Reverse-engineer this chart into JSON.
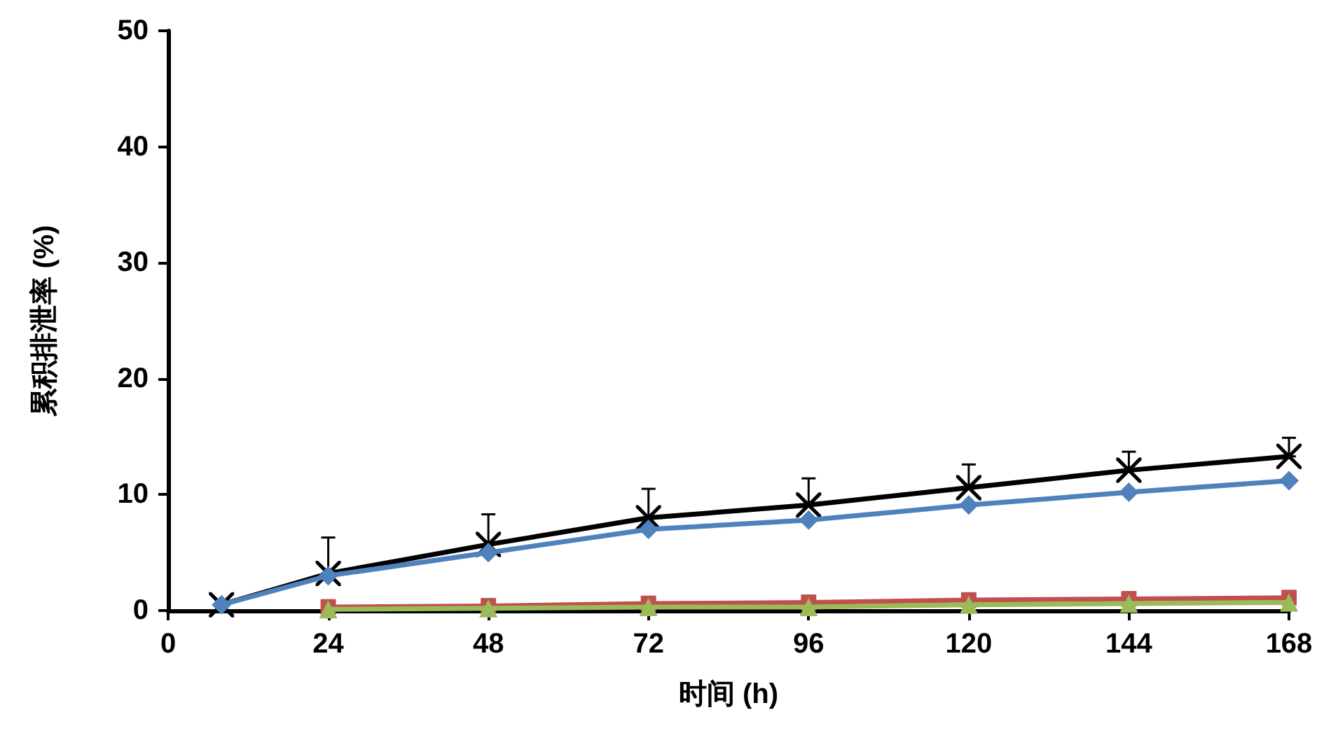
{
  "chart_data": {
    "type": "line",
    "xlabel": "时间 (h)",
    "ylabel": "累积排泄率 (%)",
    "xlim": [
      0,
      168
    ],
    "xticks": [
      0,
      24,
      48,
      72,
      96,
      120,
      144,
      168
    ],
    "ylim": [
      0,
      50
    ],
    "yticks": [
      0,
      10,
      20,
      30,
      40,
      50
    ],
    "grid": false,
    "series": [
      {
        "color": "#000000",
        "marker": "cross",
        "x": [
          8,
          24,
          48,
          72,
          96,
          120,
          144,
          168
        ],
        "values": [
          0.5,
          3.2,
          5.7,
          8.0,
          9.1,
          10.6,
          12.1,
          13.3
        ],
        "errors": [
          null,
          [
            3.2,
            6.3
          ],
          [
            5.7,
            8.3
          ],
          [
            8.0,
            10.5
          ],
          [
            9.1,
            11.4
          ],
          [
            10.6,
            12.6
          ],
          [
            12.1,
            13.7
          ],
          [
            13.3,
            14.9
          ]
        ]
      },
      {
        "color": "#4f81bd",
        "marker": "diamond",
        "x": [
          8,
          24,
          48,
          72,
          96,
          120,
          144,
          168
        ],
        "values": [
          0.5,
          3.0,
          5.0,
          7.0,
          7.8,
          9.1,
          10.2,
          11.2
        ]
      },
      {
        "color": "#c0504d",
        "marker": "square",
        "x": [
          24,
          48,
          72,
          96,
          120,
          144,
          168
        ],
        "values": [
          0.3,
          0.4,
          0.6,
          0.7,
          0.9,
          1.0,
          1.1
        ],
        "errors": [
          [
            0.3,
            0.9
          ],
          [
            0.4,
            1.0
          ],
          [
            0.6,
            1.2
          ],
          [
            0.7,
            1.3
          ],
          [
            0.9,
            1.5
          ],
          [
            1.0,
            1.6
          ],
          [
            1.1,
            1.7
          ]
        ]
      },
      {
        "color": "#9bbb59",
        "marker": "triangle",
        "x": [
          24,
          48,
          72,
          96,
          120,
          144,
          168
        ],
        "values": [
          0.1,
          0.2,
          0.3,
          0.3,
          0.5,
          0.6,
          0.7
        ]
      }
    ]
  }
}
